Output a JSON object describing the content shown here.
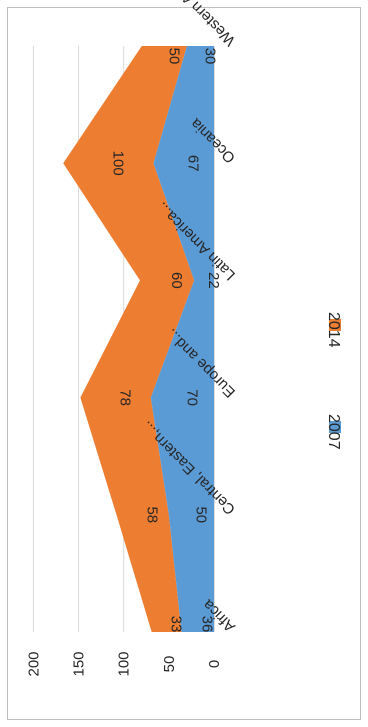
{
  "chart_data": {
    "type": "area",
    "stacked": true,
    "orientation": "rotated-180-sideways",
    "categories": [
      "Africa",
      "Central, Eastern,...",
      "Europe and...",
      "Latin America...",
      "Oceania",
      "Western Asia"
    ],
    "series": [
      {
        "name": "2007",
        "values": [
          36,
          50,
          70,
          22,
          67,
          30
        ],
        "color": "#5b9bd5"
      },
      {
        "name": "2014",
        "values": [
          33,
          58,
          78,
          60,
          100,
          50
        ],
        "color": "#ed7d31"
      }
    ],
    "y_ticks": [
      "0",
      "50",
      "100",
      "150",
      "200"
    ],
    "ylim": [
      0,
      200
    ],
    "grid": true,
    "legend_position": "right"
  }
}
